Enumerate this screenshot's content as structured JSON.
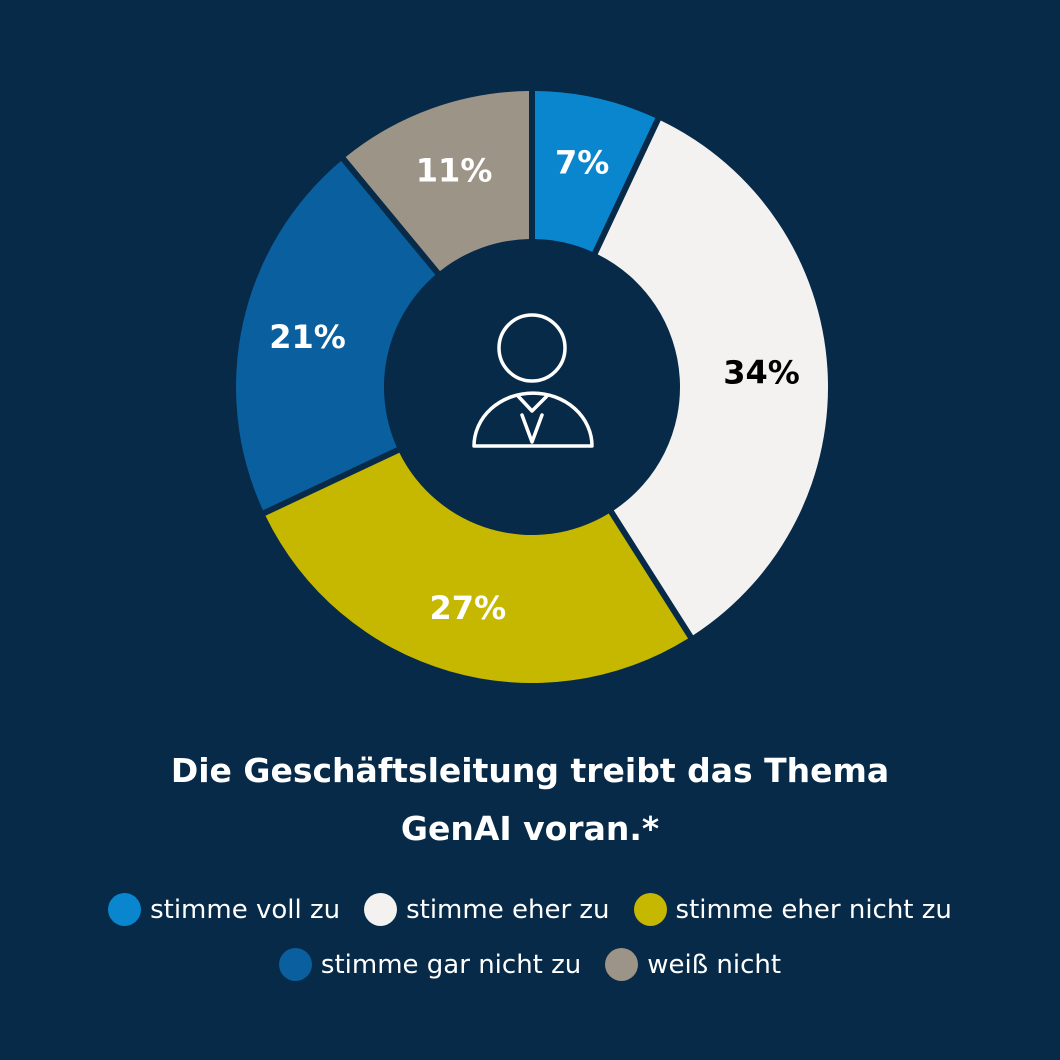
{
  "chart_data": {
    "type": "pie",
    "donut": true,
    "title": "Die Geschäftsleitung treibt das Thema GenAI voran.*",
    "title_lines": [
      "Die Geschäftsleitung treibt das Thema",
      "GenAI voran.*"
    ],
    "categories": [
      "stimme voll zu",
      "stimme eher zu",
      "stimme eher nicht zu",
      "stimme gar nicht zu",
      "weiß nicht"
    ],
    "values": [
      7,
      34,
      27,
      21,
      11
    ],
    "labels": [
      "7%",
      "34%",
      "27%",
      "21%",
      "11%"
    ],
    "colors": [
      "#0a86cf",
      "#f3f2f1",
      "#c6b700",
      "#0a5f9e",
      "#9c9487"
    ],
    "label_colors": [
      "#ffffff",
      "#000000",
      "#ffffff",
      "#ffffff",
      "#ffffff"
    ],
    "legend_placement": "bottom",
    "center_icon": "person-icon"
  }
}
